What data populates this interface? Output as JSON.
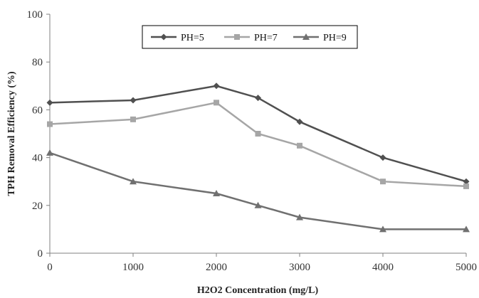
{
  "chart_data": {
    "type": "line",
    "xlabel": "H2O2 Concentration (mg/L)",
    "ylabel": "TPH Removal Efficiency (%)",
    "x": [
      0,
      1000,
      2000,
      2500,
      3000,
      4000,
      5000
    ],
    "xticks": [
      "0",
      "1000",
      "2000",
      "3000",
      "4000",
      "5000"
    ],
    "yticks": [
      "0",
      "20",
      "40",
      "60",
      "80",
      "100"
    ],
    "xlim": [
      0,
      5000
    ],
    "ylim": [
      0,
      100
    ],
    "grid": false,
    "legend_position": "top-center",
    "series": [
      {
        "name": "PH=5",
        "marker": "diamond",
        "color": "#505050",
        "values": [
          63,
          64,
          70,
          65,
          55,
          40,
          30
        ]
      },
      {
        "name": "PH=7",
        "marker": "square",
        "color": "#a6a6a6",
        "values": [
          54,
          56,
          63,
          50,
          45,
          30,
          28
        ]
      },
      {
        "name": "PH=9",
        "marker": "triangle",
        "color": "#707070",
        "values": [
          42,
          30,
          25,
          20,
          15,
          10,
          10
        ]
      }
    ]
  }
}
